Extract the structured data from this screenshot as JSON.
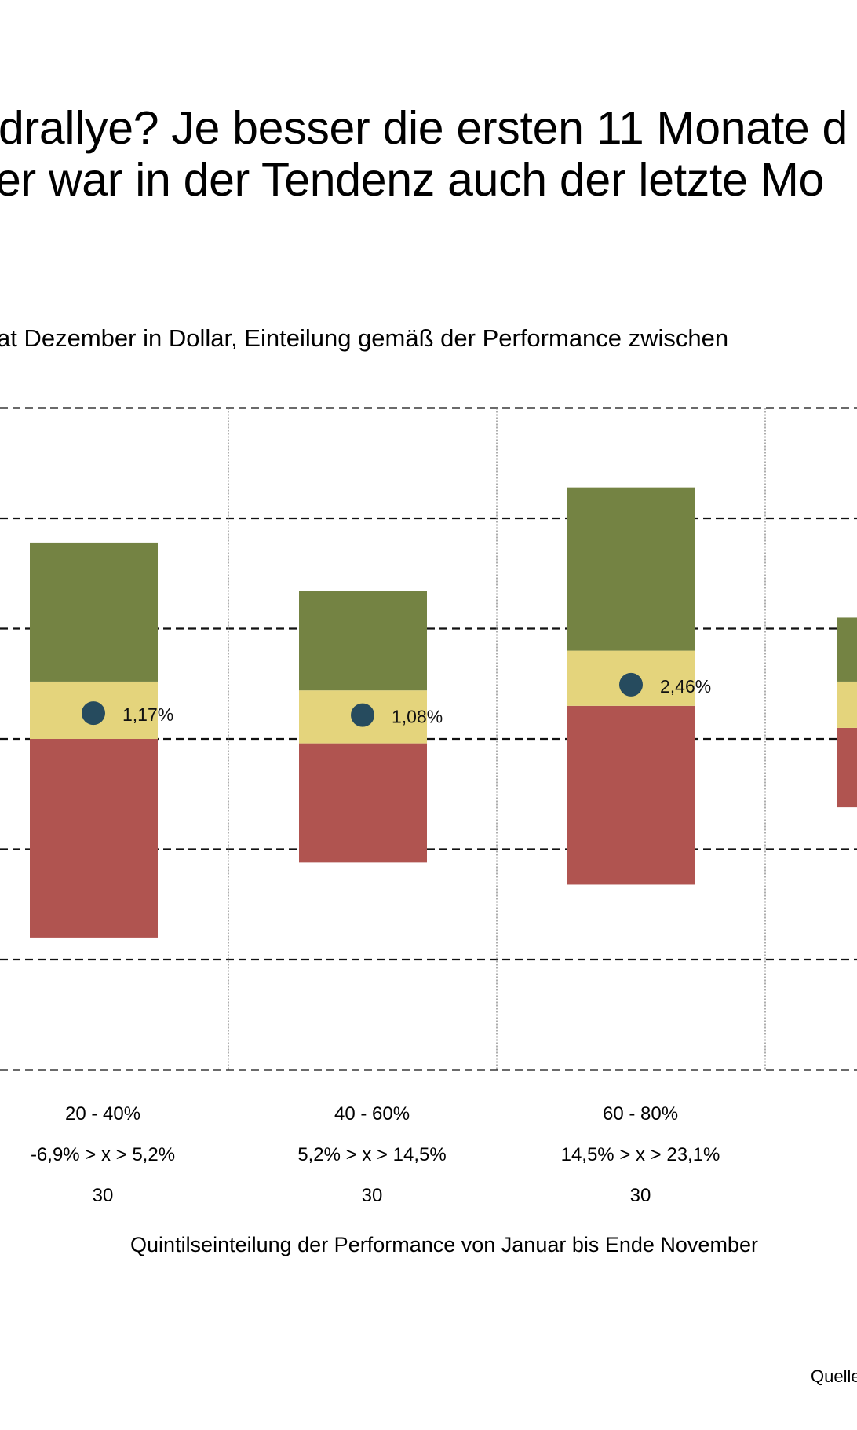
{
  "header": {
    "title_line1": "drallye? Je besser die ersten 11 Monate d",
    "title_line2": "er war in der Tendenz auch der letzte Mo",
    "subtitle": "at Dezember in Dollar, Einteilung gemäß der Performance zwischen"
  },
  "source_label": "Quelle",
  "colors": {
    "green": "#748343",
    "yellow": "#e4d47c",
    "red": "#b05450",
    "dot": "#264b5e",
    "grid": "#111111",
    "divider": "#777777"
  },
  "chart_data": {
    "type": "bar",
    "subtype": "floating stacked range bars with median dot",
    "title": "…drallye? Je besser die ersten 11 Monate d… / …er war in der Tendenz auch der letzte Mo…",
    "subtitle": "…at Dezember in Dollar, Einteilung gemäß der Performance zwischen…",
    "xlabel": "Quintilseinteilung der Performance  von Januar bis Ende November",
    "ylabel": "",
    "ylim": [
      -15,
      15
    ],
    "y_gridlines": [
      -15,
      -10,
      -5,
      0,
      5,
      10,
      15
    ],
    "y_tick_labels_visible": false,
    "grid": true,
    "categories": [
      {
        "quintile": "20 - 40%",
        "range": "-6,9% > x > 5,2%",
        "count": "30"
      },
      {
        "quintile": "40 - 60%",
        "range": "5,2% > x > 14,5%",
        "count": "30"
      },
      {
        "quintile": "60 - 80%",
        "range": "14,5% > x > 23,1%",
        "count": "30"
      },
      {
        "quintile": "",
        "range": "",
        "count": ""
      }
    ],
    "series": [
      {
        "name": "red (lower band)",
        "color": "#b05450",
        "low": [
          -9.0,
          -5.6,
          -6.6,
          -3.1
        ],
        "high": [
          0.0,
          -0.2,
          1.5,
          0.5
        ]
      },
      {
        "name": "yellow (middle band)",
        "color": "#e4d47c",
        "low": [
          0.0,
          -0.2,
          1.5,
          0.5
        ],
        "high": [
          2.6,
          2.2,
          4.0,
          2.6
        ]
      },
      {
        "name": "green (upper band)",
        "color": "#748343",
        "low": [
          2.6,
          2.2,
          4.0,
          2.6
        ],
        "high": [
          8.9,
          6.7,
          11.4,
          5.5
        ]
      }
    ],
    "markers": {
      "name": "median",
      "values": [
        1.17,
        1.08,
        2.46,
        null
      ],
      "labels": [
        "1,17%",
        "1,08%",
        "2,46%",
        ""
      ]
    },
    "legend": "none"
  }
}
